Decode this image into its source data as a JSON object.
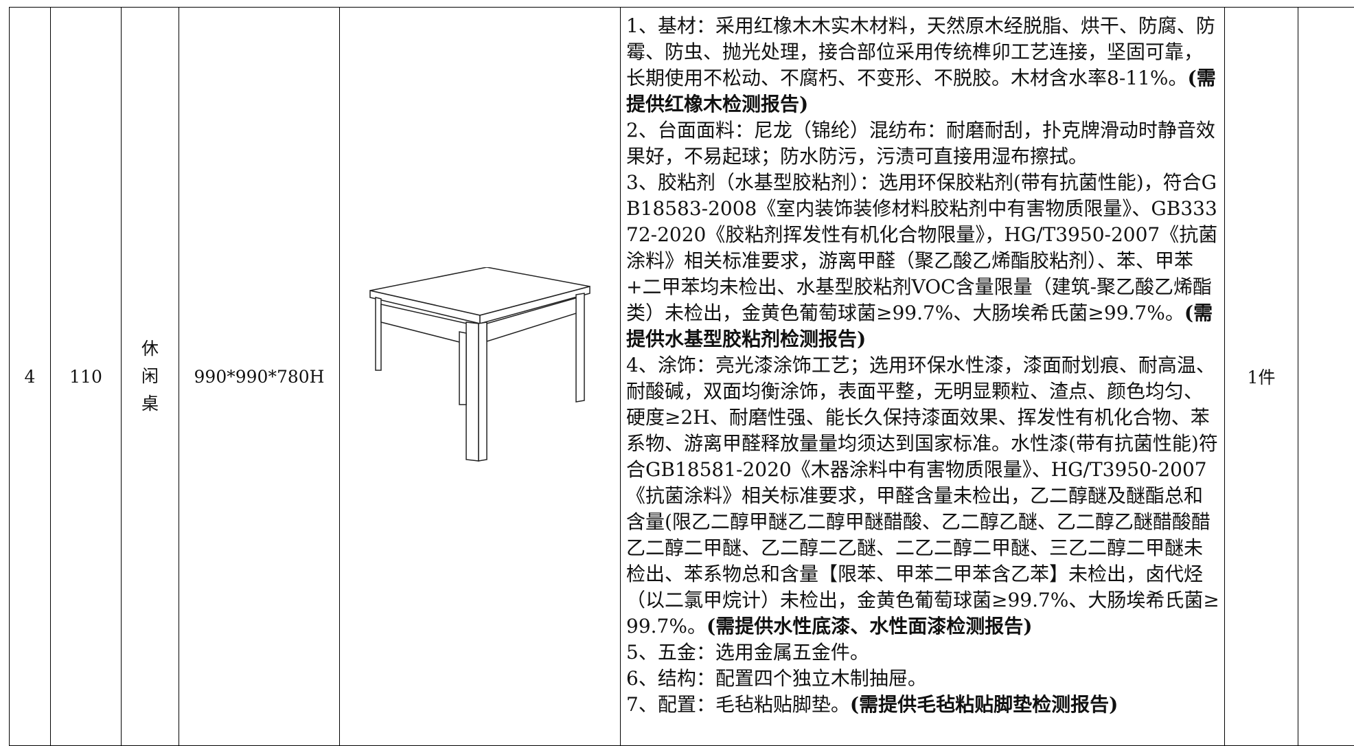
{
  "table": {
    "rows": [
      [
        "4",
        "110",
        "休闲桌",
        "990*990*780H",
        {
          "items": [
            {
              "text": "1、基材：采用红橡木木实木材料，天然原木经脱脂、烘干、防腐、防霉、防虫、抛光处理，接合部位采用传统榫卯工艺连接，坚固可靠，长期使用不松动、不腐朽、不变形、不脱胶。木材含水率8-11%。",
              "note": "(需提供红橡木检测报告)"
            },
            {
              "text": "2、台面面料：尼龙（锦纶）混纺布：耐磨耐刮，扑克牌滑动时静音效果好，不易起球；防水防污，污渍可直接用湿布擦拭。"
            },
            {
              "text": "3、胶粘剂（水基型胶粘剂）：选用环保胶粘剂(带有抗菌性能)，符合GB18583-2008《室内装饰装修材料胶粘剂中有害物质限量》、GB33372-2020《胶粘剂挥发性有机化合物限量》，HG/T3950-2007《抗菌涂料》相关标准要求，游离甲醛（聚乙酸乙烯酯胶粘剂）、苯、甲苯+二甲苯均未检出、水基型胶粘剂VOC含量限量（建筑-聚乙酸乙烯酯类）未检出，金黄色葡萄球菌≥99.7%、大肠埃希氏菌≥99.7%。",
              "note": "(需提供水基型胶粘剂检测报告)"
            },
            {
              "text": "4、涂饰：亮光漆涂饰工艺；选用环保水性漆，漆面耐划痕、耐高温、耐酸碱，双面均衡涂饰，表面平整，无明显颗粒、渣点、颜色均匀、硬度≥2H、耐磨性强、能长久保持漆面效果、挥发性有机化合物、苯系物、游离甲醛释放量量均须达到国家标准。水性漆(带有抗菌性能)符合GB18581-2020《木器涂料中有害物质限量》、HG/T3950-2007《抗菌涂料》相关标准要求，甲醛含量未检出，乙二醇醚及醚酯总和含量(限乙二醇甲醚乙二醇甲醚醋酸、乙二醇乙醚、乙二醇乙醚醋酸醋乙二醇二甲醚、乙二醇二乙醚、二乙二醇二甲醚、三乙二醇二甲醚未检出、苯系物总和含量【限苯、甲苯二甲苯含乙苯】未检出，卤代烃（以二氯甲烷计）未检出，金黄色葡萄球菌≥99.7%、大肠埃希氏菌≥99.7%。",
              "note": "(需提供水性底漆、水性面漆检测报告)"
            },
            {
              "text": "5、五金：选用金属五金件。"
            },
            {
              "text": "6、结构：配置四个独立木制抽屉。"
            },
            {
              "text": "7、配置：毛毡粘贴脚垫。",
              "note": "(需提供毛毡粘贴脚垫检测报告)"
            }
          ]
        },
        "1件"
      ]
    ]
  }
}
